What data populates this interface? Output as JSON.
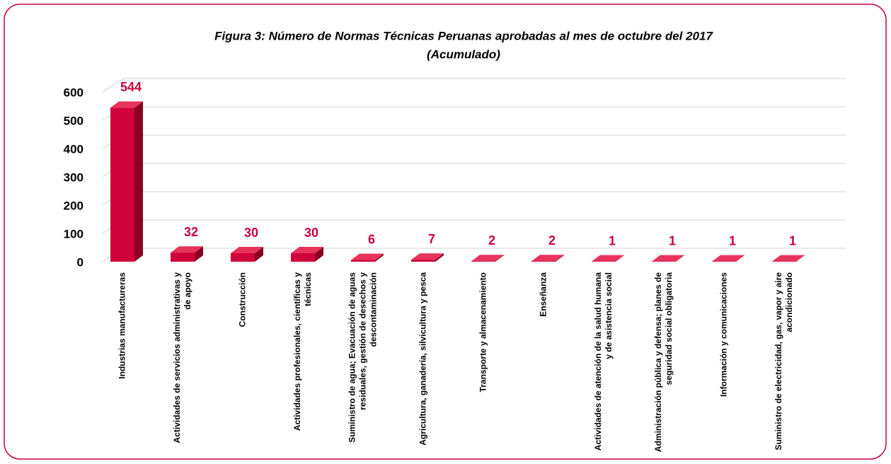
{
  "chart_data": {
    "type": "bar3d",
    "title": "Figura 3: Número de Normas Técnicas Peruanas aprobadas  al mes de octubre del 2017",
    "subtitle": "(Acumulado)",
    "categories": [
      "Industrias manufactureras",
      "Actividades de servicios administrativas y de apoyo",
      "Construcción",
      "Actividades profesionales, científicas y técnicas",
      "Suministro de agua; Evacuación de aguas residuales, gestión de desechos y descontaminación",
      "Agricultura, ganadería, silvicultura y pesca",
      "Transporte y almacenamiento",
      "Enseñanza",
      "Actividades de atención de la salud humana y de asistencia social",
      "Administración pública y defensa; planes de seguridad social obligatoria",
      "Información y comunicaciones",
      "Suministro de electricidad, gas, vapor y aire acondicionado"
    ],
    "values": [
      544,
      32,
      30,
      30,
      6,
      7,
      2,
      2,
      1,
      1,
      1,
      1
    ],
    "color": "#d0003a",
    "ylim": [
      0,
      600
    ],
    "yticks": [
      0,
      100,
      200,
      300,
      400,
      500,
      600
    ],
    "grid": true
  }
}
